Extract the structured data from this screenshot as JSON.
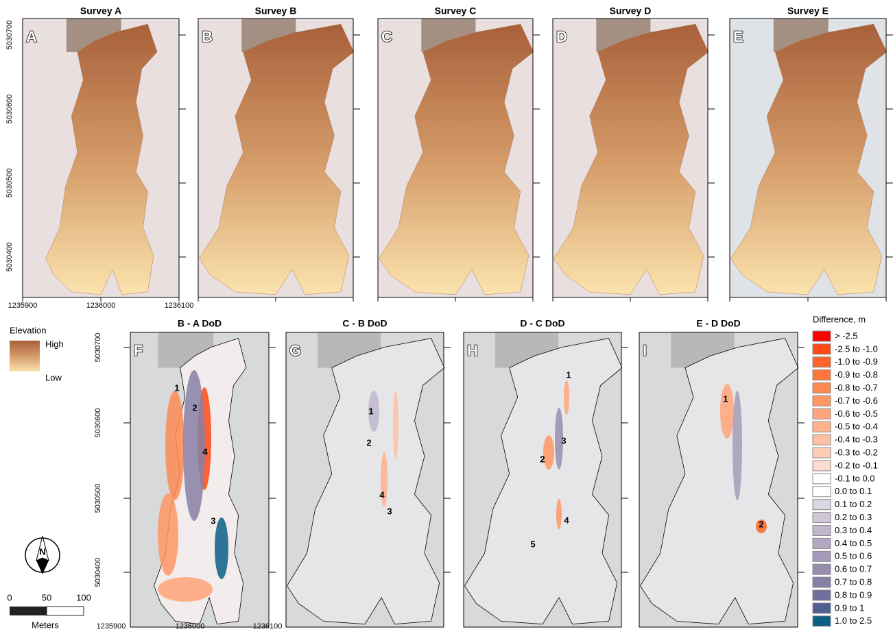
{
  "top_panels": [
    {
      "title": "Survey A",
      "letter": "A"
    },
    {
      "title": "Survey B",
      "letter": "B"
    },
    {
      "title": "Survey C",
      "letter": "C"
    },
    {
      "title": "Survey D",
      "letter": "D"
    },
    {
      "title": "Survey E",
      "letter": "E"
    }
  ],
  "bottom_panels": [
    {
      "title": "B - A DoD",
      "letter": "F",
      "labels": [
        "1",
        "2",
        "4",
        "3"
      ]
    },
    {
      "title": "C - B DoD",
      "letter": "G",
      "labels": [
        "1",
        "2",
        "4",
        "3"
      ]
    },
    {
      "title": "D - C DoD",
      "letter": "H",
      "labels": [
        "1",
        "3",
        "2",
        "4",
        "5"
      ]
    },
    {
      "title": "E - D DoD",
      "letter": "I",
      "labels": [
        "1",
        "2"
      ]
    }
  ],
  "y_ticks": [
    "5030700",
    "5030600",
    "5030500",
    "5030400"
  ],
  "x_ticks": [
    "1235900",
    "1236000",
    "1236100"
  ],
  "elevation_legend": {
    "title": "Elevation",
    "high": "High",
    "low": "Low"
  },
  "north": "N",
  "scale_bar": {
    "labels": [
      "0",
      "50",
      "100"
    ],
    "unit": "Meters"
  },
  "difference_legend": {
    "title": "Difference, m",
    "classes": [
      {
        "label": "> -2.5",
        "color": "#ff0000"
      },
      {
        "label": "-2.5 to -1.0",
        "color": "#ff4a14"
      },
      {
        "label": "-1.0 to -0.9",
        "color": "#ff6428"
      },
      {
        "label": "-0.9 to -0.8",
        "color": "#ff763c"
      },
      {
        "label": "-0.8 to -0.7",
        "color": "#ff8750"
      },
      {
        "label": "-0.7 to -0.6",
        "color": "#ff9664"
      },
      {
        "label": "-0.6 to -0.5",
        "color": "#ffa478"
      },
      {
        "label": "-0.5 to -0.4",
        "color": "#ffb28c"
      },
      {
        "label": "-0.4 to -0.3",
        "color": "#ffc0a2"
      },
      {
        "label": "-0.3 to -0.2",
        "color": "#ffcdb6"
      },
      {
        "label": "-0.2 to -0.1",
        "color": "#fcdcd0"
      },
      {
        "label": "-0.1 to 0.0",
        "color": "#ffffff"
      },
      {
        "label": "0.0 to 0.1",
        "color": "#ffffff"
      },
      {
        "label": "0.1 to 0.2",
        "color": "#dcd6e0"
      },
      {
        "label": "0.2 to 0.3",
        "color": "#cfc7d8"
      },
      {
        "label": "0.3 to 0.4",
        "color": "#c0b7cd"
      },
      {
        "label": "0.4 to 0.5",
        "color": "#b2a8c3"
      },
      {
        "label": "0.5 to 0.6",
        "color": "#a59bb9"
      },
      {
        "label": "0.6 to 0.7",
        "color": "#968daf"
      },
      {
        "label": "0.7 to 0.8",
        "color": "#8780a6"
      },
      {
        "label": "0.8 to 0.9",
        "color": "#6e6f9a"
      },
      {
        "label": "0.9 to 1",
        "color": "#4f5f90"
      },
      {
        "label": "1.0 to 2.5",
        "color": "#0b5f87"
      }
    ]
  }
}
